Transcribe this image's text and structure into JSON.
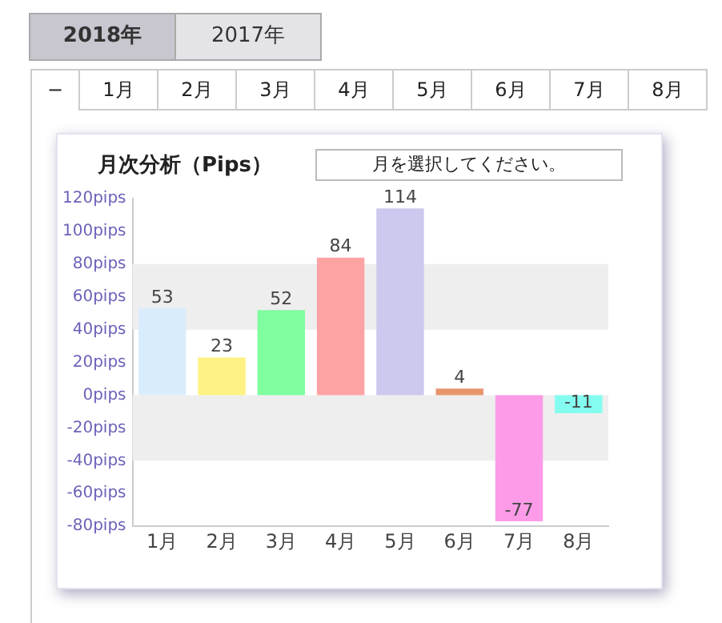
{
  "chart_data": {
    "type": "bar",
    "title": "月次分析（Pips）",
    "categories": [
      "1月",
      "2月",
      "3月",
      "4月",
      "5月",
      "6月",
      "7月",
      "8月"
    ],
    "values": [
      53,
      23,
      52,
      84,
      114,
      4,
      -77,
      -11
    ],
    "colors": [
      "#d9ecfc",
      "#fdf283",
      "#80fd9f",
      "#fda3a4",
      "#cdc8ee",
      "#e7956d",
      "#fd9be9",
      "#84fdf0"
    ],
    "ylim": [
      -80,
      120
    ],
    "yticks": [
      {
        "value": -80,
        "label": "-80pips"
      },
      {
        "value": -60,
        "label": "-60pips"
      },
      {
        "value": -40,
        "label": "-40pips"
      },
      {
        "value": -20,
        "label": "-20pips"
      },
      {
        "value": 0,
        "label": "0pips"
      },
      {
        "value": 20,
        "label": "20pips"
      },
      {
        "value": 40,
        "label": "40pips"
      },
      {
        "value": 60,
        "label": "60pips"
      },
      {
        "value": 80,
        "label": "80pips"
      },
      {
        "value": 100,
        "label": "100pips"
      },
      {
        "value": 120,
        "label": "120pips"
      }
    ],
    "bands": [
      {
        "axis": "y",
        "from": 40,
        "to": 80,
        "color": "#eeeeee"
      },
      {
        "axis": "y",
        "from": -40,
        "to": 0,
        "color": "#eeeeee"
      }
    ],
    "data_labels": true,
    "annotations": [
      "2018年",
      "2017年",
      "−",
      "1月",
      "2月",
      "3月",
      "4月",
      "5月",
      "6月",
      "7月",
      "8月",
      "月を選択してください。"
    ]
  }
}
